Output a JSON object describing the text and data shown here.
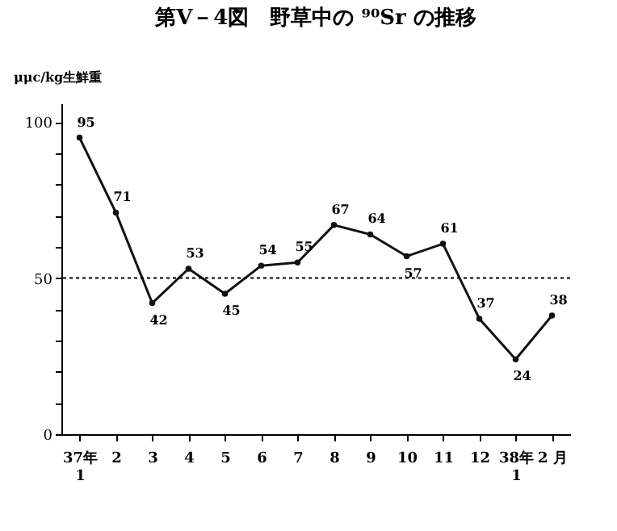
{
  "chart_data": {
    "type": "line",
    "title": "第Ⅴ－4図　野草中の ⁹⁰Sr の推移",
    "ylabel": "μμc/kg生鮮重",
    "categories": [
      "37年\n1",
      "2",
      "3",
      "4",
      "5",
      "6",
      "7",
      "8",
      "9",
      "10",
      "11",
      "12",
      "38年\n1",
      "2 月"
    ],
    "values": [
      95,
      71,
      42,
      53,
      45,
      54,
      55,
      67,
      64,
      57,
      61,
      37,
      24,
      38
    ],
    "color": "#111111",
    "ylim": [
      0,
      106
    ],
    "yticks": [
      0,
      {
        "value": 10,
        "label": null
      },
      {
        "value": 20,
        "label": null
      },
      {
        "value": 30,
        "label": null
      },
      {
        "value": 40,
        "label": null
      },
      50,
      {
        "value": 60,
        "label": null
      },
      {
        "value": 70,
        "label": null
      },
      {
        "value": 80,
        "label": null
      },
      {
        "value": 90,
        "label": null
      },
      100
    ],
    "ref_lines": [
      {
        "axis": "y",
        "value": 50,
        "line_style": "dotted"
      }
    ],
    "data_labels": true,
    "marker": "circle",
    "line_style": "solid",
    "grid": false
  }
}
